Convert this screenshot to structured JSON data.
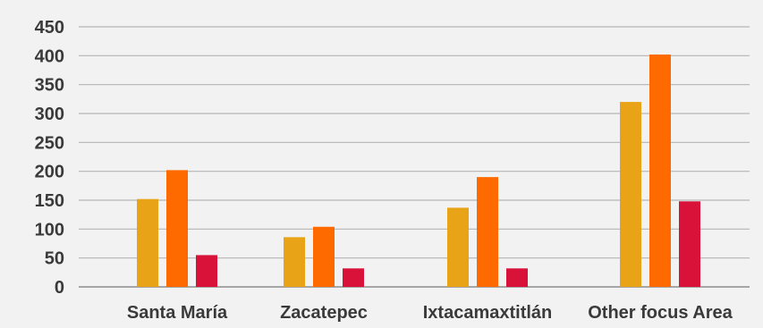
{
  "chart_data": {
    "type": "bar",
    "title": "",
    "xlabel": "",
    "ylabel": "",
    "categories": [
      "Santa María",
      "Zacatepec",
      "Ixtacamaxtitlán",
      "Other focus Area"
    ],
    "series": [
      {
        "color": "#e8a317",
        "values": [
          152,
          86,
          137,
          320
        ]
      },
      {
        "color": "#ff6a00",
        "values": [
          202,
          104,
          190,
          402
        ]
      },
      {
        "color": "#d9123a",
        "values": [
          55,
          32,
          32,
          148
        ]
      }
    ],
    "ylim": [
      0,
      450
    ],
    "yticks": [
      0,
      50,
      100,
      150,
      200,
      250,
      300,
      350,
      400,
      450
    ],
    "grid": true,
    "legend": "none"
  }
}
